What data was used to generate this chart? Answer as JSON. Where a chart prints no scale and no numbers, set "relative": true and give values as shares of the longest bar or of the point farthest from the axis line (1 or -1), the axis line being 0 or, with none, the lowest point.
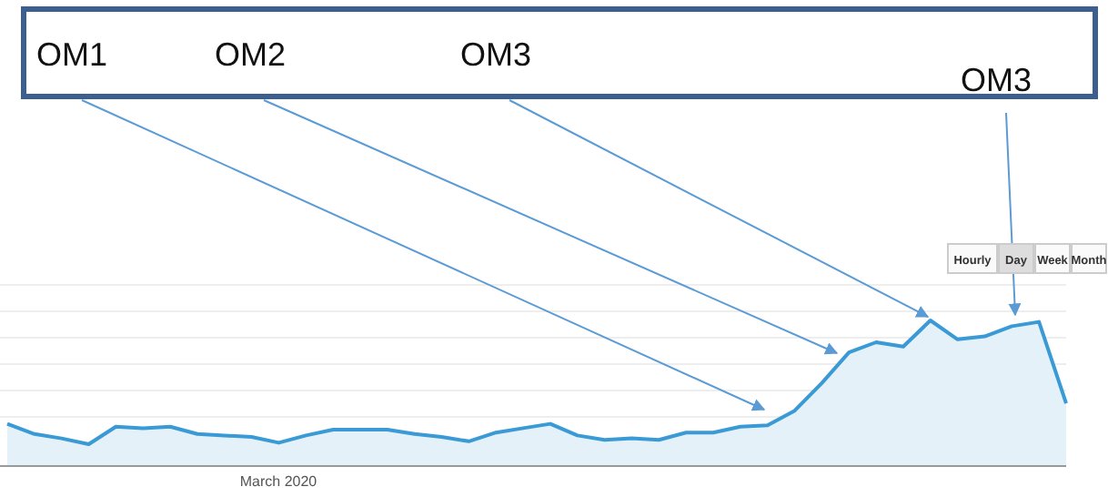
{
  "chart_data": {
    "type": "area",
    "relative": true,
    "grid": "y",
    "color": "#3a9ad6",
    "categories": [
      null,
      null,
      null,
      null,
      null,
      null,
      null,
      null,
      null,
      null,
      null,
      null,
      null,
      null,
      null,
      null,
      null,
      null,
      null,
      null,
      null,
      null,
      null,
      null,
      null,
      null,
      null,
      null,
      null,
      null,
      null,
      null,
      null,
      null,
      null,
      null,
      null,
      null,
      null,
      null
    ],
    "values": [
      0.29,
      0.22,
      0.19,
      0.15,
      0.27,
      0.26,
      0.27,
      0.22,
      0.21,
      0.2,
      0.16,
      0.21,
      0.25,
      0.25,
      0.25,
      0.22,
      0.2,
      0.17,
      0.23,
      0.26,
      0.29,
      0.21,
      0.18,
      0.19,
      0.18,
      0.23,
      0.23,
      0.27,
      0.28,
      0.38,
      0.57,
      0.78,
      0.85,
      0.82,
      1,
      0.87,
      0.89,
      0.96,
      0.99,
      0.43
    ],
    "annotations": [
      "OM1",
      "OM2",
      "OM3",
      "OM3",
      "March 2020",
      "Hourly",
      "Day",
      "Week",
      "Month"
    ]
  }
}
